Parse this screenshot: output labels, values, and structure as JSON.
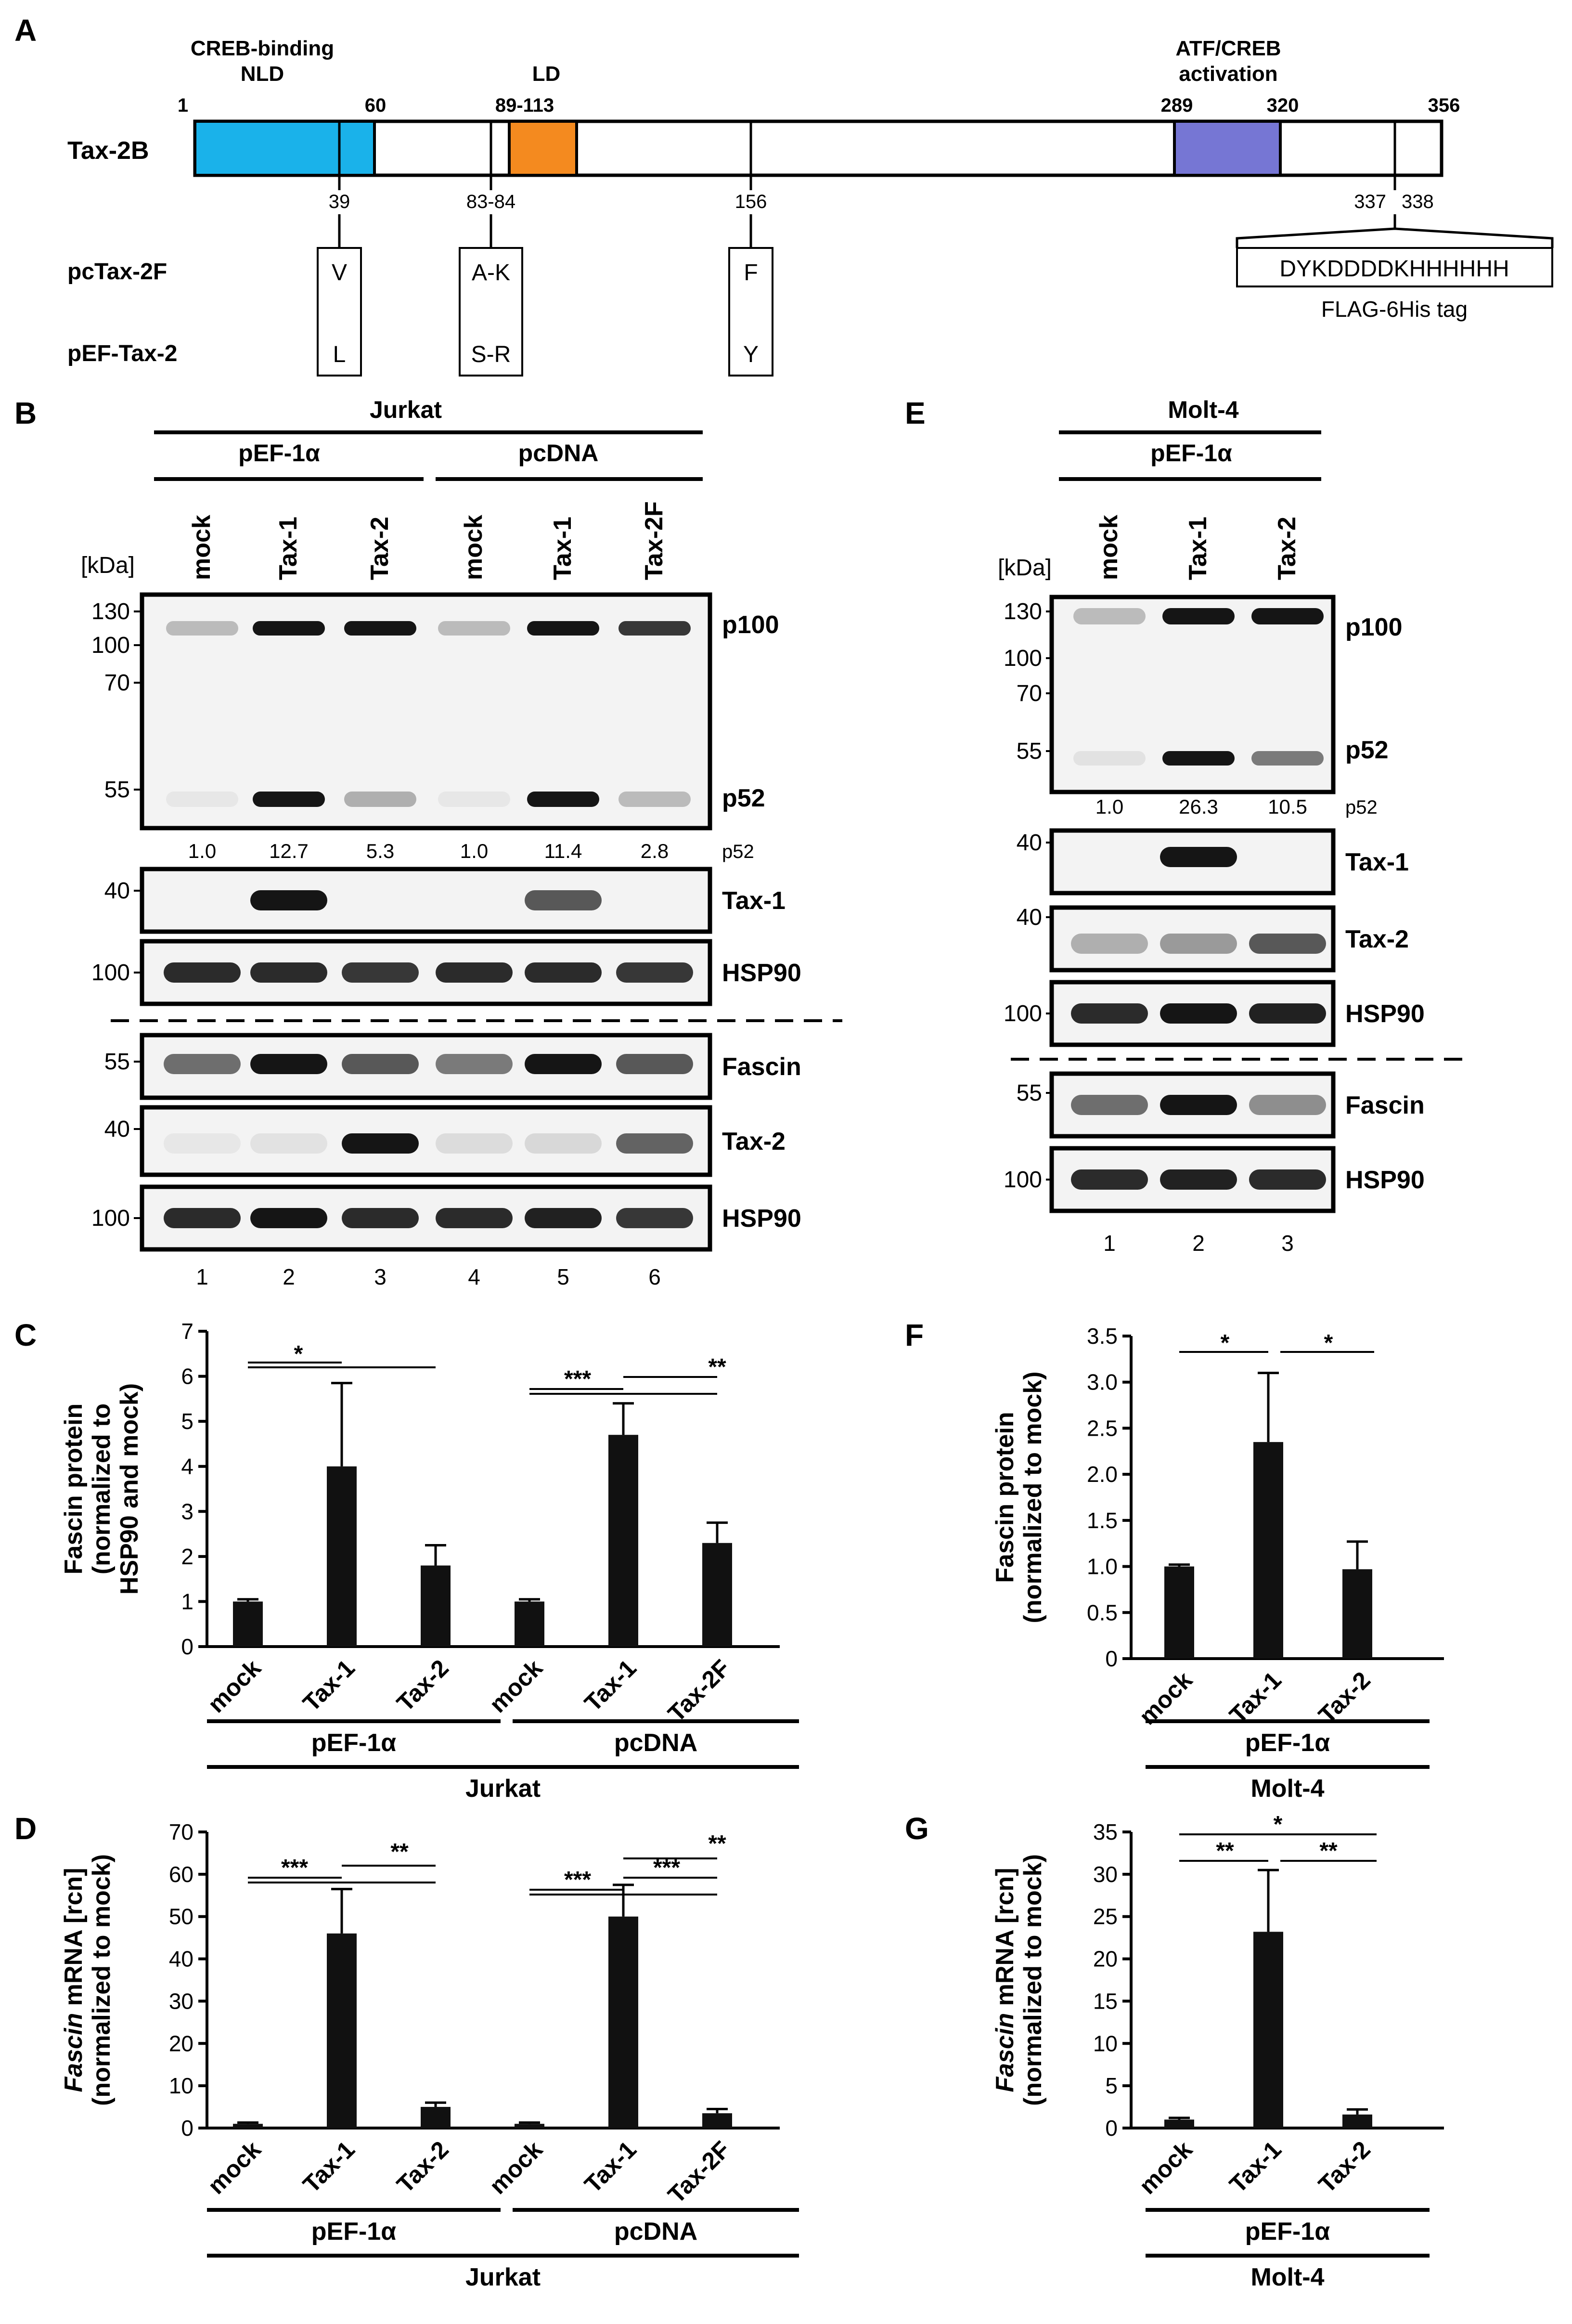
{
  "panels": {
    "a": "A",
    "b": "B",
    "c": "C",
    "d": "D",
    "e": "E",
    "f": "F",
    "g": "G"
  },
  "domain_map": {
    "protein": "Tax-2B",
    "positions": [
      "1",
      "60",
      "89-113",
      "289",
      "320",
      "356"
    ],
    "domains": [
      {
        "label_line1": "CREB-binding",
        "label_line2": "NLD",
        "color": "#1ab2ea"
      },
      {
        "label_line1": "LD",
        "label_line2": "",
        "color": "#f48a1f"
      },
      {
        "label_line1": "ATF/CREB",
        "label_line2": "activation",
        "color": "#7676d4"
      }
    ],
    "sites": [
      "39",
      "83-84",
      "156",
      "337",
      "338"
    ],
    "constructs": [
      {
        "name": "pcTax-2F",
        "residues": [
          "V",
          "A-K",
          "F"
        ]
      },
      {
        "name": "pEF-Tax-2",
        "residues": [
          "L",
          "S-R",
          "Y"
        ]
      }
    ],
    "tag_sequence": "DYKDDDDKHHHHHH",
    "tag_label": "FLAG-6His tag"
  },
  "blot_b": {
    "cell_line": "Jurkat",
    "vectors": [
      "pEF-1α",
      "pcDNA"
    ],
    "lanes": [
      "mock",
      "Tax-1",
      "Tax-2",
      "mock",
      "Tax-1",
      "Tax-2F"
    ],
    "kda": "[kDa]",
    "mw_main": [
      "130",
      "100",
      "70",
      "55"
    ],
    "bands_main": [
      "p100",
      "p52"
    ],
    "p52_values": [
      "1.0",
      "12.7",
      "5.3",
      "1.0",
      "11.4",
      "2.8"
    ],
    "p52_label": "p52",
    "blots": [
      {
        "label": "Tax-1",
        "mw": "40"
      },
      {
        "label": "HSP90",
        "mw": "100"
      },
      {
        "label": "Fascin",
        "mw": "55"
      },
      {
        "label": "Tax-2",
        "mw": "40"
      },
      {
        "label": "HSP90",
        "mw": "100"
      }
    ],
    "lane_numbers": [
      "1",
      "2",
      "3",
      "4",
      "5",
      "6"
    ]
  },
  "blot_e": {
    "cell_line": "Molt-4",
    "vector": "pEF-1α",
    "lanes": [
      "mock",
      "Tax-1",
      "Tax-2"
    ],
    "kda": "[kDa]",
    "mw_main": [
      "130",
      "100",
      "70",
      "55"
    ],
    "bands_main": [
      "p100",
      "p52"
    ],
    "p52_values": [
      "1.0",
      "26.3",
      "10.5"
    ],
    "p52_label": "p52",
    "blots": [
      {
        "label": "Tax-1",
        "mw": "40"
      },
      {
        "label": "Tax-2",
        "mw": "40"
      },
      {
        "label": "HSP90",
        "mw": "100"
      },
      {
        "label": "Fascin",
        "mw": "55"
      },
      {
        "label": "HSP90",
        "mw": "100"
      }
    ],
    "lane_numbers": [
      "1",
      "2",
      "3"
    ]
  },
  "chart_data": [
    {
      "panel": "C",
      "type": "bar",
      "categories": [
        "mock",
        "Tax-1",
        "Tax-2",
        "mock",
        "Tax-1",
        "Tax-2F"
      ],
      "values": [
        1.0,
        4.0,
        1.8,
        1.0,
        4.7,
        2.3
      ],
      "errors": [
        0.05,
        1.85,
        0.45,
        0.05,
        0.7,
        0.45
      ],
      "ylabel_lines": [
        "Fascin protein",
        "(normalized to",
        "HSP90 and mock)"
      ],
      "ylim": [
        0,
        7
      ],
      "yticks": [
        "0",
        "1",
        "2",
        "3",
        "4",
        "5",
        "6",
        "7"
      ],
      "groups": [
        "pEF-1α",
        "pcDNA"
      ],
      "cell_line": "Jurkat",
      "significance": [
        "*",
        "***",
        "**"
      ]
    },
    {
      "panel": "D",
      "type": "bar",
      "categories": [
        "mock",
        "Tax-1",
        "Tax-2",
        "mock",
        "Tax-1",
        "Tax-2F"
      ],
      "values": [
        1.0,
        46,
        5,
        1.0,
        50,
        3.5
      ],
      "errors": [
        0.3,
        10.5,
        1,
        0.3,
        7.5,
        1
      ],
      "ylabel_italic": "Fascin",
      "ylabel_rest": " mRNA [rcn]",
      "ylabel_line2": "(normalized to mock)",
      "ylim": [
        0,
        70
      ],
      "yticks": [
        "0",
        "10",
        "20",
        "30",
        "40",
        "50",
        "60",
        "70"
      ],
      "groups": [
        "pEF-1α",
        "pcDNA"
      ],
      "cell_line": "Jurkat",
      "significance": [
        "***",
        "**",
        "***",
        "**",
        "***"
      ]
    },
    {
      "panel": "F",
      "type": "bar",
      "categories": [
        "mock",
        "Tax-1",
        "Tax-2"
      ],
      "values": [
        1.0,
        2.35,
        0.97
      ],
      "errors": [
        0.02,
        0.75,
        0.3
      ],
      "ylabel_lines": [
        "Fascin protein",
        "(normalized to mock)"
      ],
      "ylim": [
        0,
        3.5
      ],
      "yticks": [
        "0",
        "0.5",
        "1.0",
        "1.5",
        "2.0",
        "2.5",
        "3.0",
        "3.5"
      ],
      "groups": [
        "pEF-1α"
      ],
      "cell_line": "Molt-4",
      "significance": [
        "*",
        "*"
      ]
    },
    {
      "panel": "G",
      "type": "bar",
      "categories": [
        "mock",
        "Tax-1",
        "Tax-2"
      ],
      "values": [
        1.0,
        23.2,
        1.6
      ],
      "errors": [
        0.2,
        7.3,
        0.6
      ],
      "ylabel_italic": "Fascin",
      "ylabel_rest": " mRNA [rcn]",
      "ylabel_line2": "(normalized to mock)",
      "ylim": [
        0,
        35
      ],
      "yticks": [
        "0",
        "5",
        "10",
        "15",
        "20",
        "25",
        "30",
        "35"
      ],
      "groups": [
        "pEF-1α"
      ],
      "cell_line": "Molt-4",
      "significance": [
        "*",
        "**",
        "**"
      ]
    }
  ]
}
